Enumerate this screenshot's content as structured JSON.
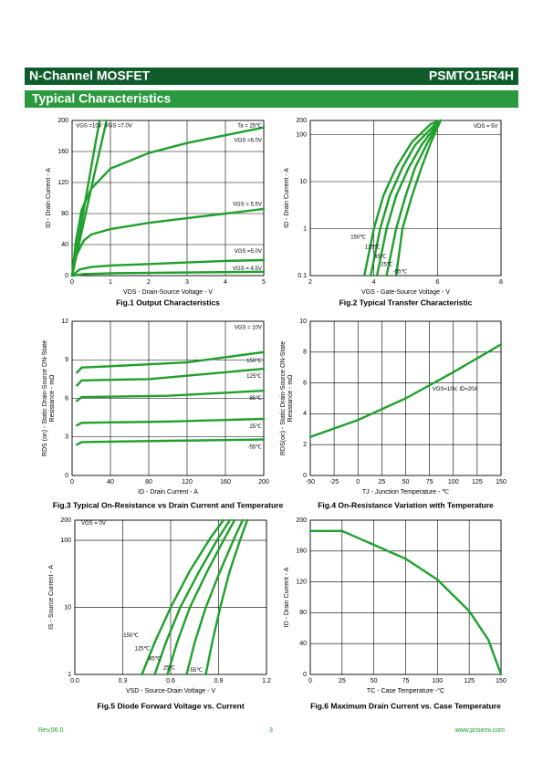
{
  "header": {
    "left": "N-Channel MOSFET",
    "right": "PSMTO15R4H"
  },
  "section": "Typical Characteristics",
  "footer": {
    "rev": "Rev.06.0",
    "page": "3",
    "site": "www.prisemi.com"
  },
  "chart_data": [
    {
      "type": "line",
      "title": "Fig.1 Output Characteristics",
      "xlabel": "VDS - Drain-Source Voltage - V",
      "ylabel": [
        "ID - Drain Current - A"
      ],
      "xlim": [
        0,
        5
      ],
      "ylim": [
        0,
        200
      ],
      "xticks": [
        0,
        1,
        2,
        3,
        4,
        5
      ],
      "yticks": [
        0,
        40,
        80,
        120,
        160,
        200
      ],
      "grid": true,
      "log_y": false,
      "color": "#1fa02c",
      "annotations": [
        "Ta = 25℃"
      ],
      "series": [
        {
          "name": "VGS =10V",
          "x": [
            0,
            0.2,
            0.4,
            0.6,
            0.72
          ],
          "values": [
            0,
            56,
            112,
            168,
            200
          ]
        },
        {
          "name": "VGS =7.0V",
          "x": [
            0,
            0.3,
            0.6,
            0.9
          ],
          "values": [
            0,
            68,
            135,
            200
          ]
        },
        {
          "name": "VGS =6.0V",
          "x": [
            0,
            0.1,
            0.25,
            0.5,
            1,
            2,
            3,
            4,
            5
          ],
          "values": [
            0,
            45,
            85,
            112,
            138,
            158,
            171,
            181,
            191
          ]
        },
        {
          "name": "VGS = 5.5V",
          "x": [
            0,
            0.1,
            0.3,
            0.5,
            1,
            2,
            3,
            4,
            5
          ],
          "values": [
            0,
            25,
            45,
            53,
            60,
            68,
            74,
            80,
            86
          ]
        },
        {
          "name": "VGS =5.0V",
          "x": [
            0,
            0.2,
            0.5,
            1,
            2,
            3,
            4,
            5
          ],
          "values": [
            0,
            8,
            11,
            13,
            15,
            17,
            19,
            20
          ]
        },
        {
          "name": "VGS = 4.5V",
          "x": [
            0,
            0.3,
            1,
            3,
            5
          ],
          "values": [
            0,
            2,
            3,
            4,
            5
          ]
        }
      ]
    },
    {
      "type": "line",
      "title": "Fig.2 Typical Transfer Characteristic",
      "xlabel": "VGS - Gate-Source Voltage - V",
      "ylabel": [
        "ID - Drain Current - A"
      ],
      "xlim": [
        2,
        8
      ],
      "ylim": [
        0.1,
        200
      ],
      "xticks": [
        2,
        4,
        6,
        8
      ],
      "yticks": [
        0.1,
        1,
        10,
        100,
        200
      ],
      "grid": true,
      "log_y": true,
      "color": "#1fa02c",
      "annotations": [
        "VDS = 5V"
      ],
      "series": [
        {
          "name": "150℃",
          "x": [
            3.7,
            4.0,
            4.3,
            4.7,
            5.2,
            5.8,
            6.1
          ],
          "values": [
            0.1,
            1,
            5,
            20,
            70,
            170,
            200
          ]
        },
        {
          "name": "125℃",
          "x": [
            3.9,
            4.2,
            4.5,
            4.9,
            5.3,
            5.9,
            6.1
          ],
          "values": [
            0.1,
            1,
            5,
            20,
            60,
            160,
            200
          ]
        },
        {
          "name": "85℃",
          "x": [
            4.1,
            4.4,
            4.7,
            5.1,
            5.5,
            6.0,
            6.1
          ],
          "values": [
            0.1,
            1,
            5,
            20,
            60,
            170,
            200
          ]
        },
        {
          "name": "25℃",
          "x": [
            4.4,
            4.7,
            5.0,
            5.3,
            5.7,
            6.1
          ],
          "values": [
            0.1,
            1,
            5,
            20,
            70,
            200
          ]
        },
        {
          "name": "-55℃",
          "x": [
            4.7,
            4.9,
            5.2,
            5.5,
            5.8,
            6.1
          ],
          "values": [
            0.1,
            1,
            5,
            20,
            70,
            200
          ]
        }
      ]
    },
    {
      "type": "line",
      "title": "Fig.3 Typical On-Resistance  vs Drain Current and Temperature",
      "xlabel": "ID - Drain Current - A",
      "ylabel": [
        "RDS (on) - Static Drain-Source ON-State",
        "Resistance - mΩ"
      ],
      "xlim": [
        0,
        200
      ],
      "ylim": [
        0,
        12
      ],
      "xticks": [
        0,
        40,
        80,
        120,
        160,
        200
      ],
      "yticks": [
        0,
        3,
        6,
        9,
        12
      ],
      "grid": true,
      "log_y": false,
      "color": "#1fa02c",
      "annotations": [
        "VGS = 10V"
      ],
      "series": [
        {
          "name": "150℃",
          "x": [
            5,
            10,
            40,
            120,
            200
          ],
          "values": [
            8.0,
            8.4,
            8.5,
            8.8,
            9.6
          ]
        },
        {
          "name": "125℃",
          "x": [
            5,
            10,
            80,
            200
          ],
          "values": [
            7.0,
            7.4,
            7.5,
            8.3
          ]
        },
        {
          "name": "85℃",
          "x": [
            5,
            10,
            100,
            200
          ],
          "values": [
            5.8,
            6.1,
            6.2,
            6.6
          ]
        },
        {
          "name": "25℃",
          "x": [
            5,
            10,
            100,
            200
          ],
          "values": [
            3.9,
            4.1,
            4.2,
            4.4
          ]
        },
        {
          "name": "-55℃",
          "x": [
            5,
            10,
            100,
            200
          ],
          "values": [
            2.4,
            2.6,
            2.7,
            2.8
          ]
        }
      ]
    },
    {
      "type": "line",
      "title": "Fig.4 On-Resistance Variation with Temperature",
      "xlabel": "TJ - Junction Temperature - ℃",
      "ylabel": [
        "RDS(on) - Static Drain-Source ON-State",
        "Resistance - mΩ"
      ],
      "xlim": [
        -50,
        150
      ],
      "ylim": [
        0,
        10
      ],
      "xticks": [
        -50,
        -25,
        0,
        25,
        50,
        75,
        100,
        125,
        150
      ],
      "yticks": [
        0,
        2,
        4,
        6,
        8,
        10
      ],
      "grid": true,
      "log_y": false,
      "color": "#1fa02c",
      "annotations": [
        "VGS=10V, ID=20A"
      ],
      "series": [
        {
          "name": null,
          "x": [
            -50,
            0,
            50,
            100,
            150
          ],
          "values": [
            2.5,
            3.6,
            5.0,
            6.7,
            8.5
          ]
        }
      ]
    },
    {
      "type": "line",
      "title": "Fig.5 Diode Forward Voltage vs. Current",
      "xlabel": "VSD - Source-Drain Voltage - V",
      "ylabel": [
        "IS - Source Current - A"
      ],
      "xlim": [
        0,
        1.2
      ],
      "ylim": [
        1,
        200
      ],
      "xticks": [
        {
          "value": 0,
          "label": "0.0"
        },
        0.3,
        0.6,
        0.9,
        1.2
      ],
      "yticks": [
        1,
        10,
        100,
        200
      ],
      "grid": true,
      "log_y": true,
      "color": "#1fa02c",
      "annotations": [
        "VGS = 0V"
      ],
      "series": [
        {
          "name": "150℃",
          "x": [
            0.42,
            0.5,
            0.6,
            0.72,
            0.85,
            0.93
          ],
          "values": [
            1,
            3,
            10,
            35,
            110,
            200
          ]
        },
        {
          "name": "125℃",
          "x": [
            0.5,
            0.57,
            0.66,
            0.78,
            0.9,
            0.97
          ],
          "values": [
            1,
            3,
            10,
            35,
            110,
            200
          ]
        },
        {
          "name": "85℃",
          "x": [
            0.58,
            0.64,
            0.72,
            0.83,
            0.94,
            1.0
          ],
          "values": [
            1,
            3,
            10,
            35,
            110,
            200
          ]
        },
        {
          "name": "25℃",
          "x": [
            0.7,
            0.75,
            0.82,
            0.91,
            1.0,
            1.05
          ],
          "values": [
            1,
            3,
            10,
            35,
            110,
            200
          ]
        },
        {
          "name": "-55℃",
          "x": [
            0.82,
            0.86,
            0.91,
            0.97,
            1.04,
            1.08
          ],
          "values": [
            1,
            3,
            10,
            35,
            110,
            200
          ]
        }
      ]
    },
    {
      "type": "line",
      "title": "Fig.6 Maximum Drain Current vs. Case Temperature",
      "xlabel": "TC - Case Temperature -°C",
      "ylabel": [
        "ID - Drain Current - A"
      ],
      "xlim": [
        0,
        150
      ],
      "ylim": [
        0,
        200
      ],
      "xticks": [
        0,
        25,
        50,
        75,
        100,
        125,
        150
      ],
      "yticks": [
        0,
        40,
        80,
        120,
        160,
        200
      ],
      "grid": true,
      "log_y": false,
      "color": "#1fa02c",
      "annotations": [],
      "series": [
        {
          "name": null,
          "x": [
            0,
            25,
            50,
            75,
            100,
            125,
            140,
            150
          ],
          "values": [
            186,
            186,
            168,
            150,
            123,
            82,
            45,
            0
          ]
        }
      ]
    }
  ]
}
